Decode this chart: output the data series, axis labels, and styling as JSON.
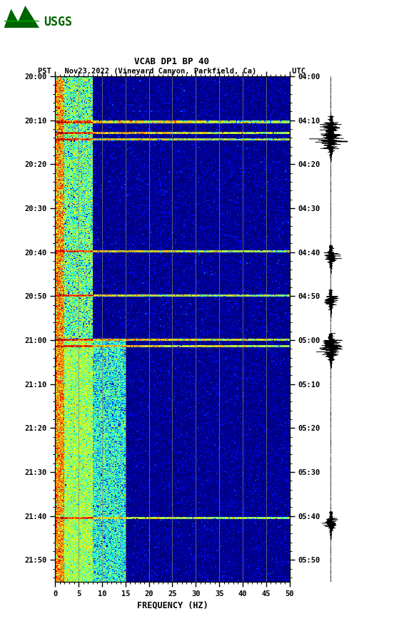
{
  "title_line1": "VCAB DP1 BP 40",
  "title_line2": "PST   Nov23,2022 (Vineyard Canyon, Parkfield, Ca)        UTC",
  "xlabel": "FREQUENCY (HZ)",
  "freq_min": 0,
  "freq_max": 50,
  "pst_ticks": [
    "20:00",
    "20:10",
    "20:20",
    "20:30",
    "20:40",
    "20:50",
    "21:00",
    "21:10",
    "21:20",
    "21:30",
    "21:40",
    "21:50"
  ],
  "utc_ticks": [
    "04:00",
    "04:10",
    "04:20",
    "04:30",
    "04:40",
    "04:50",
    "05:00",
    "05:10",
    "05:20",
    "05:30",
    "05:40",
    "05:50"
  ],
  "freq_ticks": [
    0,
    5,
    10,
    15,
    20,
    25,
    30,
    35,
    40,
    45,
    50
  ],
  "vert_grid_freqs": [
    5,
    10,
    15,
    20,
    25,
    30,
    35,
    40,
    45
  ],
  "colormap": "jet",
  "fig_width": 5.52,
  "fig_height": 8.92,
  "dpi": 100,
  "usgs_logo_color": "#006400",
  "background_color": "#ffffff",
  "event_minutes": [
    10.5,
    13.0,
    14.5,
    40.0,
    50.0,
    60.0,
    61.5,
    100.5
  ],
  "event_intensities": [
    4.0,
    5.0,
    3.5,
    3.5,
    3.0,
    5.0,
    4.5,
    3.0
  ],
  "n_time": 660,
  "n_freq": 250,
  "total_minutes": 115
}
